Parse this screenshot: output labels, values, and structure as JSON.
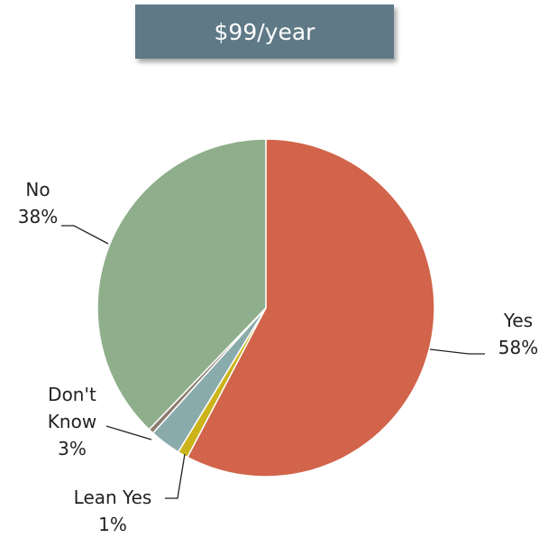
{
  "chart_data": {
    "type": "pie",
    "title": "$99/year",
    "categories": [
      "Yes",
      "Lean Yes",
      "Don't Know",
      null,
      "No"
    ],
    "values": [
      58,
      1,
      3,
      0.5,
      38
    ],
    "value_labels": [
      "58%",
      "1%",
      "3%",
      null,
      "38%"
    ],
    "colors": [
      "#d1644a",
      "#cbb31b",
      "#8aabab",
      "#8b7c6f",
      "#8fae8b"
    ]
  }
}
